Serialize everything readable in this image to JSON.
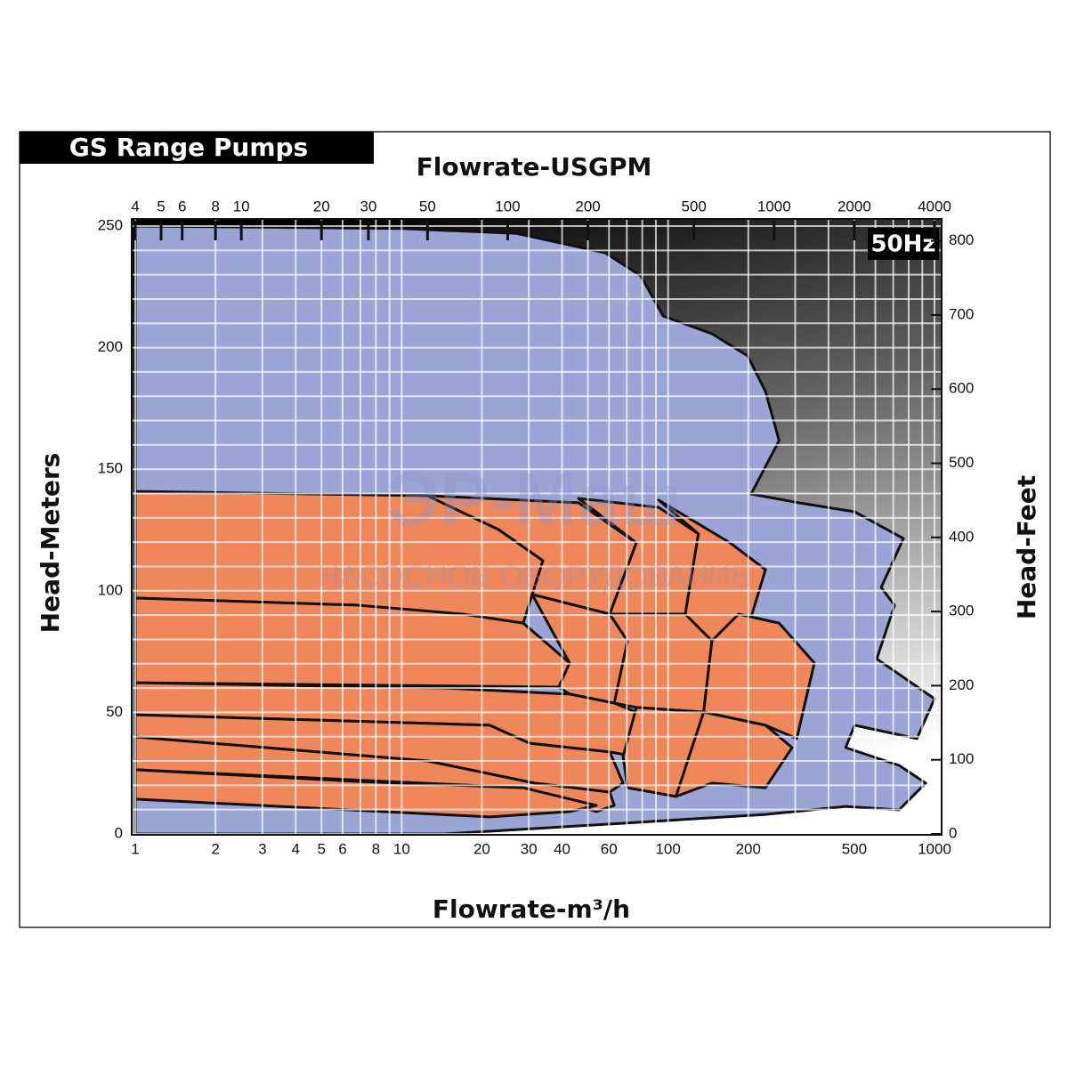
{
  "chart_data": {
    "type": "area",
    "title": "GS Range Pumps",
    "x_label": "Flowrate-m³/h",
    "x2_label": "Flowrate-USGPM",
    "y_label": "Head-Meters",
    "y2_label": "Head-Feet",
    "annotations": [
      "50Hz"
    ],
    "watermark": [
      "ЭР-Маш",
      "НАСОСНОЕ ОБОРУДОВАНИЕ"
    ],
    "xscale": "log",
    "x2scale": "log",
    "grid": true,
    "edgecolor": "#111111",
    "xlim": [
      1,
      1000
    ],
    "xticks": [
      1,
      2,
      3,
      4,
      5,
      6,
      8,
      10,
      20,
      30,
      40,
      60,
      100,
      200,
      500,
      1000
    ],
    "xminor_ticks": [
      7,
      9,
      50,
      70,
      80,
      90,
      300,
      400,
      600,
      700,
      800,
      900
    ],
    "x2lim": [
      4,
      4000
    ],
    "x2ticks": [
      4,
      5,
      6,
      8,
      10,
      20,
      30,
      50,
      100,
      200,
      500,
      1000,
      2000,
      4000
    ],
    "ylim": [
      0,
      250
    ],
    "yticks": [
      0,
      50,
      100,
      150,
      200,
      250
    ],
    "yminor_ticks": [
      10,
      20,
      30,
      40,
      60,
      70,
      80,
      90,
      110,
      120,
      130,
      140,
      160,
      170,
      180,
      190,
      210,
      220,
      230,
      240
    ],
    "y2lim": [
      0,
      820
    ],
    "y2ticks": [
      0,
      100,
      200,
      300,
      400,
      500,
      600,
      700,
      800
    ],
    "series": [
      {
        "color": "#9aa5d6",
        "x": [
          1,
          9.9,
          26.9,
          58.1,
          79,
          95.8,
          146,
          199,
          232,
          261,
          205,
          316,
          501,
          764,
          631,
          708,
          607,
          1000,
          859,
          501,
          464,
          736,
          927,
          736,
          464,
          232,
          67.8,
          14.5,
          1
        ],
        "values": [
          250,
          249,
          247,
          239,
          229.5,
          213,
          205.7,
          196.6,
          182,
          161.8,
          139.8,
          136,
          132.5,
          121.5,
          101.4,
          94,
          72,
          55.6,
          39.2,
          44.7,
          35.5,
          28.2,
          20.9,
          9.9,
          11.3,
          8,
          4.4,
          0,
          0
        ]
      },
      {
        "color": "#f0875a",
        "x": [
          1,
          12.5,
          23.1,
          33.9,
          28.6,
          14.5,
          6.74,
          1
        ],
        "values": [
          140.9,
          139.1,
          125.2,
          112.4,
          86.7,
          90.4,
          94.1,
          97
        ]
      },
      {
        "color": "#f0875a",
        "x": [
          1,
          6.74,
          17,
          28.6,
          42.7,
          38.9,
          1
        ],
        "values": [
          97,
          94.1,
          90.4,
          86.7,
          70.3,
          60.4,
          62.2
        ]
      },
      {
        "color": "#f0875a",
        "x": [
          12.5,
          46.1,
          76,
          60.4,
          30.9,
          33.9,
          23.1
        ],
        "values": [
          139.1,
          136.2,
          119.7,
          90.4,
          98.5,
          112.4,
          125.2
        ]
      },
      {
        "color": "#f0875a",
        "x": [
          30.9,
          60.4,
          70.4,
          67.8,
          62.8,
          42.7,
          38.9,
          42.7
        ],
        "values": [
          98.5,
          90.4,
          79.4,
          64.8,
          53.8,
          57.5,
          60.4,
          70.3
        ]
      },
      {
        "color": "#f0875a",
        "x": [
          46.1,
          92.2,
          130,
          116,
          73.1,
          60.4,
          76
        ],
        "values": [
          138,
          134.3,
          123.4,
          90.4,
          86.7,
          90.4,
          119.7
        ]
      },
      {
        "color": "#f0875a",
        "x": [
          60.4,
          116,
          146,
          136,
          76,
          62.8,
          70.4
        ],
        "values": [
          90.4,
          90.4,
          79.4,
          50.1,
          52,
          53.8,
          79.4
        ]
      },
      {
        "color": "#f0875a",
        "x": [
          92.2,
          171,
          232,
          184,
          146,
          116,
          130
        ],
        "values": [
          137.3,
          119.7,
          108.7,
          72.1,
          79.4,
          90.4,
          123.4
        ]
      },
      {
        "color": "#f0875a",
        "x": [
          184,
          261,
          354,
          304,
          232,
          136,
          146
        ],
        "values": [
          90.4,
          86.7,
          70.3,
          39.2,
          44.7,
          50.1,
          79.4
        ]
      },
      {
        "color": "#f0875a",
        "x": [
          1,
          14.5,
          42.7,
          62.8,
          76,
          76,
          60.4,
          30.2,
          21.4,
          1
        ],
        "values": [
          62.2,
          60,
          57.5,
          53.8,
          50.1,
          31.8,
          33.7,
          37.3,
          44.7,
          49
        ]
      },
      {
        "color": "#f0875a",
        "x": [
          1,
          21.4,
          30.2,
          60.4,
          67.8,
          60.4,
          31.4,
          12.5,
          1
        ],
        "values": [
          49,
          44.7,
          37.3,
          33.7,
          20.9,
          17.2,
          20.9,
          30,
          39.9
        ]
      },
      {
        "color": "#f0875a",
        "x": [
          1,
          12.5,
          31.4,
          60.4,
          62.8,
          53.8,
          28.6,
          1
        ],
        "values": [
          39.9,
          30,
          20.9,
          17.2,
          11.7,
          9.2,
          19,
          26.4
        ]
      },
      {
        "color": "#f0875a",
        "x": [
          1,
          6.74,
          28.6,
          53.8,
          42.7,
          21.4,
          1
        ],
        "values": [
          26.4,
          21.6,
          19,
          11.7,
          9.2,
          7,
          14.3
        ]
      },
      {
        "color": "#f0875a",
        "x": [
          76,
          136,
          184,
          136,
          107,
          70.4,
          67.8
        ],
        "values": [
          52,
          50.1,
          41,
          24.5,
          15.4,
          19,
          31.8
        ]
      },
      {
        "color": "#f0875a",
        "x": [
          136,
          232,
          292,
          232,
          146,
          107
        ],
        "values": [
          50.1,
          44.7,
          35.5,
          19,
          20.9,
          15.4
        ]
      }
    ]
  }
}
